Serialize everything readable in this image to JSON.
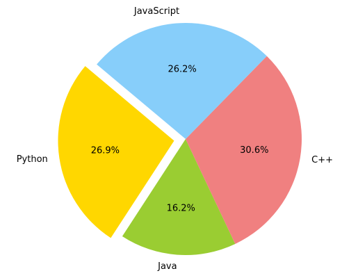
{
  "chart_data": {
    "type": "pie",
    "categories": [
      "Python",
      "Java",
      "C++",
      "JavaScript"
    ],
    "values": [
      26.9,
      16.2,
      30.6,
      26.2
    ],
    "value_labels": [
      "26.9%",
      "16.2%",
      "30.6%",
      "26.2%"
    ],
    "colors": [
      "#ffd700",
      "#9acd32",
      "#f08080",
      "#87cefa"
    ],
    "startangle": 140,
    "explode": [
      0.1,
      0,
      0,
      0
    ]
  }
}
